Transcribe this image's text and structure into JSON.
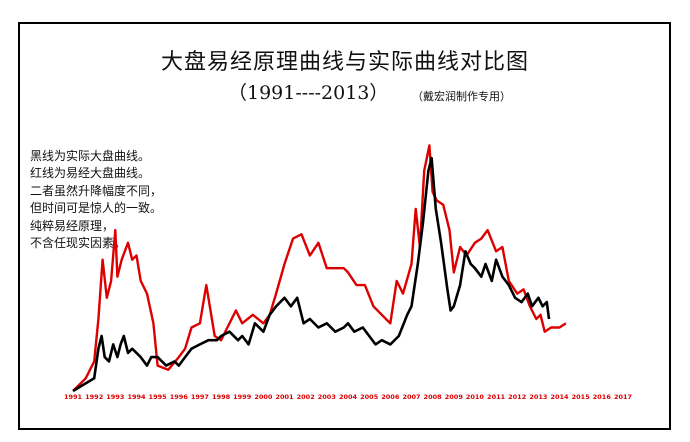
{
  "chart_data": {
    "type": "line",
    "title": "大盘易经原理曲线与实际曲线对比图",
    "subtitle": "（1991----2013）",
    "author": "（戴宏润制作专用）",
    "annotations": [
      "黑线为实际大盘曲线。",
      "红线为易经大盘曲线。",
      "二者虽然升降幅度不同，",
      "但时间可是惊人的一致。",
      "纯粹易经原理，",
      "不含任现实因素。"
    ],
    "x_ticks": [
      "1991",
      "1992",
      "1993",
      "1994",
      "1995",
      "1996",
      "1997",
      "1998",
      "1999",
      "2000",
      "2001",
      "2002",
      "2003",
      "2004",
      "2005",
      "2006",
      "2007",
      "2008",
      "2009",
      "2010",
      "2011",
      "2012",
      "2013",
      "2014",
      "2015",
      "2016",
      "2017"
    ],
    "x_range": [
      1991,
      2017
    ],
    "y_range": [
      0,
      6400
    ],
    "colors": {
      "red": "#dd0000",
      "black": "#000000",
      "tick_text": "#dd0000"
    },
    "series": [
      {
        "key": "yijing",
        "color": "#dd0000",
        "x": [
          1991.0,
          1991.6,
          1992.0,
          1992.2,
          1992.4,
          1992.6,
          1992.8,
          1993.0,
          1993.1,
          1993.3,
          1993.45,
          1993.6,
          1993.8,
          1994.0,
          1994.2,
          1994.5,
          1994.8,
          1995.0,
          1995.5,
          1996.0,
          1996.3,
          1996.6,
          1997.0,
          1997.3,
          1997.7,
          1998.0,
          1998.3,
          1998.7,
          1999.0,
          1999.5,
          2000.0,
          2000.3,
          2000.6,
          2001.0,
          2001.4,
          2001.8,
          2002.2,
          2002.6,
          2003.0,
          2003.4,
          2003.8,
          2004.0,
          2004.4,
          2004.8,
          2005.2,
          2005.6,
          2006.0,
          2006.3,
          2006.6,
          2007.0,
          2007.2,
          2007.4,
          2007.6,
          2007.85,
          2008.0,
          2008.2,
          2008.5,
          2008.8,
          2009.0,
          2009.3,
          2009.6,
          2010.0,
          2010.3,
          2010.6,
          2011.0,
          2011.3,
          2011.6,
          2012.0,
          2012.3,
          2012.6,
          2012.9,
          2013.1,
          2013.3,
          2013.6,
          2014.0,
          2014.3
        ],
        "y": [
          0,
          300,
          700,
          1700,
          3100,
          2200,
          2600,
          3800,
          2700,
          3100,
          3300,
          3500,
          3100,
          3200,
          2600,
          2300,
          1600,
          600,
          500,
          800,
          1000,
          1500,
          1600,
          2500,
          1300,
          1200,
          1500,
          1900,
          1600,
          1800,
          1600,
          1800,
          2300,
          3000,
          3600,
          3700,
          3200,
          3500,
          2900,
          2900,
          2900,
          2800,
          2500,
          2500,
          2000,
          1800,
          1600,
          2600,
          2300,
          3000,
          4300,
          3400,
          5200,
          5800,
          4700,
          4500,
          4400,
          3800,
          2800,
          3400,
          3200,
          3500,
          3600,
          3800,
          3300,
          3400,
          2600,
          2300,
          2400,
          2000,
          1700,
          1800,
          1400,
          1500,
          1500,
          1600
        ]
      },
      {
        "key": "actual",
        "color": "#000000",
        "x": [
          1991.0,
          1991.5,
          1992.0,
          1992.2,
          1992.35,
          1992.5,
          1992.7,
          1992.9,
          1993.1,
          1993.25,
          1993.4,
          1993.6,
          1993.8,
          1994.0,
          1994.2,
          1994.5,
          1994.7,
          1995.0,
          1995.4,
          1995.8,
          1996.0,
          1996.3,
          1996.6,
          1997.0,
          1997.4,
          1997.8,
          1998.0,
          1998.4,
          1998.8,
          1999.0,
          1999.3,
          1999.6,
          2000.0,
          2000.3,
          2000.6,
          2001.0,
          2001.3,
          2001.6,
          2001.9,
          2002.2,
          2002.6,
          2003.0,
          2003.4,
          2003.8,
          2004.0,
          2004.3,
          2004.7,
          2005.0,
          2005.3,
          2005.6,
          2006.0,
          2006.4,
          2006.8,
          2007.0,
          2007.3,
          2007.55,
          2007.8,
          2007.95,
          2008.15,
          2008.4,
          2008.7,
          2008.85,
          2009.0,
          2009.3,
          2009.55,
          2009.8,
          2010.0,
          2010.3,
          2010.5,
          2010.8,
          2011.0,
          2011.3,
          2011.6,
          2011.9,
          2012.2,
          2012.5,
          2012.7,
          2013.0,
          2013.2,
          2013.4,
          2013.5
        ],
        "y": [
          0,
          150,
          300,
          1000,
          1300,
          800,
          700,
          1100,
          800,
          1100,
          1300,
          900,
          1000,
          900,
          800,
          600,
          800,
          800,
          600,
          700,
          600,
          800,
          1000,
          1100,
          1200,
          1200,
          1300,
          1400,
          1200,
          1300,
          1100,
          1600,
          1400,
          1800,
          2000,
          2200,
          2000,
          2200,
          1600,
          1700,
          1500,
          1600,
          1400,
          1500,
          1600,
          1400,
          1500,
          1300,
          1100,
          1200,
          1100,
          1300,
          1800,
          2000,
          3000,
          4000,
          5200,
          5500,
          4300,
          3500,
          2400,
          1900,
          2000,
          2500,
          3300,
          3000,
          2900,
          2700,
          3000,
          2600,
          3100,
          2700,
          2500,
          2200,
          2100,
          2300,
          2000,
          2200,
          2000,
          2100,
          1700
        ]
      }
    ]
  }
}
